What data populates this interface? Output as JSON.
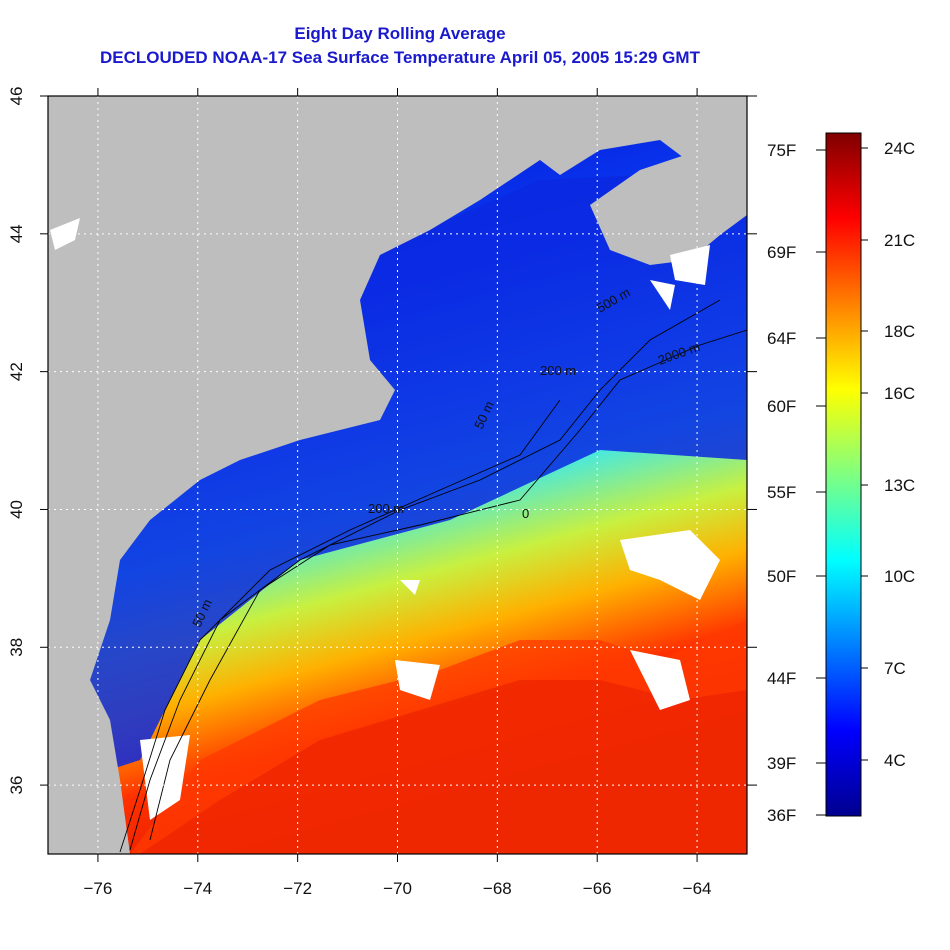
{
  "title_line1": "Eight Day Rolling Average",
  "title_line2": "DECLOUDED NOAA-17 Sea Surface Temperature April 05, 2005 15:29 GMT",
  "map": {
    "lon_range": [
      -77,
      -63
    ],
    "lat_range": [
      35,
      46
    ],
    "lon_ticks": [
      -76,
      -74,
      -72,
      -70,
      -68,
      -66,
      -64
    ],
    "lat_ticks": [
      36,
      38,
      40,
      42,
      44,
      46
    ],
    "gridlines": "dotted, every 2 degrees",
    "land_color": "#bebebe",
    "cloud_color": "#ffffff"
  },
  "contours": {
    "labels": [
      "50 m",
      "50 m",
      "200 m",
      "200 m",
      "500 m",
      "2000 m",
      "0"
    ]
  },
  "colorbar": {
    "celsius_labels": [
      "24C",
      "21C",
      "18C",
      "16C",
      "13C",
      "10C",
      "7C",
      "4C"
    ],
    "fahrenheit_labels": [
      "75F",
      "69F",
      "64F",
      "60F",
      "55F",
      "50F",
      "44F",
      "39F",
      "36F"
    ],
    "colors": [
      "#00008f",
      "#0000ff",
      "#0080ff",
      "#00ffff",
      "#80ff80",
      "#ffff00",
      "#ff8000",
      "#ff0000",
      "#800000"
    ]
  }
}
